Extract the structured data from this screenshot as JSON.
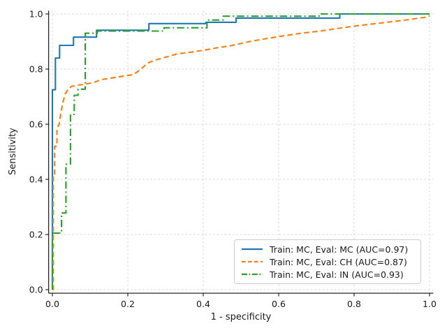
{
  "chart_data": {
    "type": "line",
    "title": "",
    "xlabel": "1 - specificity",
    "ylabel": "Sensitivity",
    "xlim": [
      0,
      1
    ],
    "ylim": [
      0,
      1
    ],
    "xticks": [
      0.0,
      0.2,
      0.4,
      0.6,
      0.8,
      1.0
    ],
    "yticks": [
      0.0,
      0.2,
      0.4,
      0.6,
      0.8,
      1.0
    ],
    "grid": true,
    "grid_style": "dashed",
    "legend_position": "lower right",
    "series": [
      {
        "name": "Train: MC, Eval: MC (AUC=0.97)",
        "auc": 0.97,
        "color": "#1f77b4",
        "linestyle": "solid",
        "points": [
          [
            0,
            0
          ],
          [
            0,
            0.725
          ],
          [
            0.008,
            0.725
          ],
          [
            0.008,
            0.84
          ],
          [
            0.019,
            0.84
          ],
          [
            0.019,
            0.886
          ],
          [
            0.056,
            0.886
          ],
          [
            0.056,
            0.916
          ],
          [
            0.117,
            0.916
          ],
          [
            0.117,
            0.941
          ],
          [
            0.256,
            0.941
          ],
          [
            0.256,
            0.965
          ],
          [
            0.407,
            0.965
          ],
          [
            0.407,
            0.97
          ],
          [
            0.487,
            0.97
          ],
          [
            0.487,
            0.985
          ],
          [
            0.762,
            0.985
          ],
          [
            0.762,
            1
          ],
          [
            1,
            1
          ]
        ]
      },
      {
        "name": "Train: MC, Eval: CH (AUC=0.87)",
        "auc": 0.87,
        "color": "#ff7f0e",
        "linestyle": "dashed",
        "points": [
          [
            0,
            0
          ],
          [
            0.002,
            0
          ],
          [
            0.002,
            0.41
          ],
          [
            0.006,
            0.41
          ],
          [
            0.006,
            0.52
          ],
          [
            0.012,
            0.52
          ],
          [
            0.012,
            0.585
          ],
          [
            0.018,
            0.6
          ],
          [
            0.022,
            0.64
          ],
          [
            0.028,
            0.68
          ],
          [
            0.034,
            0.71
          ],
          [
            0.042,
            0.728
          ],
          [
            0.052,
            0.738
          ],
          [
            0.07,
            0.742
          ],
          [
            0.09,
            0.746
          ],
          [
            0.11,
            0.752
          ],
          [
            0.13,
            0.762
          ],
          [
            0.16,
            0.768
          ],
          [
            0.19,
            0.775
          ],
          [
            0.215,
            0.78
          ],
          [
            0.23,
            0.795
          ],
          [
            0.253,
            0.822
          ],
          [
            0.27,
            0.832
          ],
          [
            0.3,
            0.843
          ],
          [
            0.33,
            0.855
          ],
          [
            0.37,
            0.862
          ],
          [
            0.4,
            0.868
          ],
          [
            0.435,
            0.877
          ],
          [
            0.47,
            0.884
          ],
          [
            0.53,
            0.902
          ],
          [
            0.6,
            0.918
          ],
          [
            0.66,
            0.93
          ],
          [
            0.71,
            0.938
          ],
          [
            0.76,
            0.948
          ],
          [
            0.8,
            0.956
          ],
          [
            0.87,
            0.967
          ],
          [
            0.93,
            0.977
          ],
          [
            0.99,
            0.988
          ],
          [
            1,
            0.993
          ]
        ]
      },
      {
        "name": "Train: MC, Eval: IN (AUC=0.93)",
        "auc": 0.93,
        "color": "#2ca02c",
        "linestyle": "dashdot",
        "points": [
          [
            0,
            0
          ],
          [
            0,
            0.205
          ],
          [
            0.024,
            0.205
          ],
          [
            0.024,
            0.278
          ],
          [
            0.036,
            0.278
          ],
          [
            0.036,
            0.455
          ],
          [
            0.048,
            0.455
          ],
          [
            0.048,
            0.636
          ],
          [
            0.058,
            0.636
          ],
          [
            0.058,
            0.705
          ],
          [
            0.068,
            0.705
          ],
          [
            0.068,
            0.727
          ],
          [
            0.087,
            0.727
          ],
          [
            0.087,
            0.93
          ],
          [
            0.119,
            0.93
          ],
          [
            0.119,
            0.938
          ],
          [
            0.296,
            0.938
          ],
          [
            0.296,
            0.95
          ],
          [
            0.41,
            0.95
          ],
          [
            0.41,
            0.978
          ],
          [
            0.453,
            0.978
          ],
          [
            0.453,
            0.992
          ],
          [
            0.707,
            0.992
          ],
          [
            0.707,
            1
          ],
          [
            1,
            1
          ]
        ]
      }
    ]
  }
}
